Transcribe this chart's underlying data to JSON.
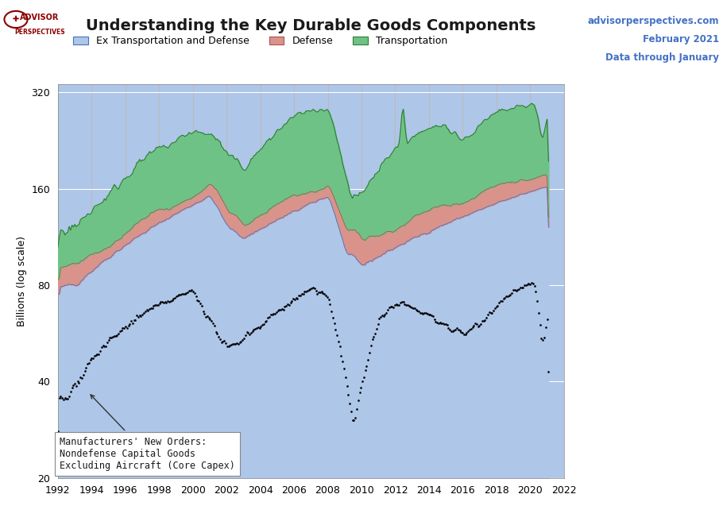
{
  "title": "Understanding the Key Durable Goods Components",
  "subtitle_right_line1": "advisorperspectives.com",
  "subtitle_right_line2": "February 2021",
  "subtitle_right_line3": "Data through January",
  "ylabel": "Billions (log scale)",
  "xlim": [
    1992,
    2022
  ],
  "ylim_log": [
    20,
    320
  ],
  "yticks": [
    20,
    40,
    80,
    160,
    320
  ],
  "xticks": [
    1992,
    1994,
    1996,
    1998,
    2000,
    2002,
    2004,
    2006,
    2008,
    2010,
    2012,
    2014,
    2016,
    2018,
    2020,
    2022
  ],
  "legend_labels": [
    "Ex Transportation and Defense",
    "Defense",
    "Transportation"
  ],
  "legend_colors": [
    "#aec6e8",
    "#d9938a",
    "#6fc286"
  ],
  "bg_color": "#aec6e8",
  "annotation_text": "Manufacturers' New Orders:\nNondefense Capital Goods\nExcluding Aircraft (Core Capex)",
  "title_color": "#1a1a1a",
  "right_text_color": "#4472c4",
  "advisor_text_color": "#8B0000",
  "grid_color": "#ffffff"
}
